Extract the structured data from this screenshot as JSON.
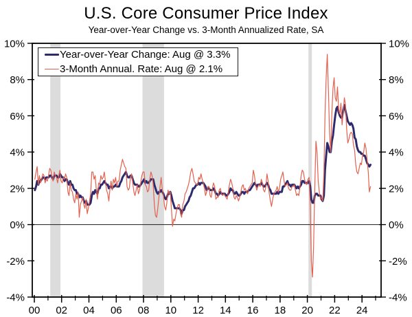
{
  "chart_data": {
    "type": "line",
    "title": "U.S. Core Consumer Price Index",
    "subtitle": "Year-over-Year Change vs. 3-Month Annualized Rate, SA",
    "x_unit": "monthly",
    "x_start": "2000-01",
    "x_end": "2024-08",
    "xlim": [
      1999.85,
      2025.4
    ],
    "ylim": [
      -4,
      10
    ],
    "yticks": [
      -4,
      -2,
      0,
      2,
      4,
      6,
      8,
      10
    ],
    "ytick_suffix": "%",
    "xticks_major": [
      2000,
      2002,
      2004,
      2006,
      2008,
      2010,
      2012,
      2014,
      2016,
      2018,
      2020,
      2022,
      2024
    ],
    "xtick_labels": [
      "00",
      "02",
      "04",
      "06",
      "08",
      "10",
      "12",
      "14",
      "16",
      "18",
      "20",
      "22",
      "24"
    ],
    "xticks_minor": [
      2001,
      2003,
      2005,
      2007,
      2009,
      2011,
      2013,
      2015,
      2017,
      2019,
      2021,
      2023,
      2025
    ],
    "grid": "none",
    "zero_line": 0,
    "legend_position": "top-left",
    "band_color": "#dcdcdc",
    "frame_color": "#000000",
    "recession_bands": [
      [
        2001.17,
        2001.92
      ],
      [
        2007.92,
        2009.5
      ],
      [
        2020.08,
        2020.33
      ]
    ],
    "series": [
      {
        "id": "yoy",
        "name": "Year-over-Year Change: Aug @ 3.3%",
        "latest_label": "Aug @ 3.3%",
        "color": "#2d2a6e",
        "width": 3,
        "values": [
          1.9,
          2.1,
          2.4,
          2.2,
          2.4,
          2.4,
          2.5,
          2.6,
          2.6,
          2.5,
          2.6,
          2.6,
          2.6,
          2.7,
          2.7,
          2.6,
          2.5,
          2.7,
          2.7,
          2.7,
          2.6,
          2.6,
          2.8,
          2.7,
          2.6,
          2.6,
          2.4,
          2.5,
          2.5,
          2.3,
          2.2,
          2.4,
          2.2,
          2.2,
          2.0,
          1.9,
          1.9,
          1.7,
          1.7,
          1.5,
          1.6,
          1.5,
          1.5,
          1.3,
          1.2,
          1.3,
          1.1,
          1.1,
          1.1,
          1.2,
          1.6,
          1.8,
          1.7,
          1.9,
          1.8,
          1.7,
          2.0,
          2.0,
          2.2,
          2.2,
          2.3,
          2.4,
          2.3,
          2.2,
          2.2,
          2.0,
          2.1,
          2.1,
          2.0,
          2.1,
          2.1,
          2.2,
          2.1,
          2.1,
          2.1,
          2.3,
          2.4,
          2.6,
          2.7,
          2.8,
          2.9,
          2.7,
          2.6,
          2.6,
          2.7,
          2.7,
          2.5,
          2.3,
          2.2,
          2.2,
          2.2,
          2.1,
          2.1,
          2.2,
          2.3,
          2.4,
          2.5,
          2.3,
          2.4,
          2.3,
          2.3,
          2.4,
          2.5,
          2.5,
          2.5,
          2.2,
          2.0,
          1.8,
          1.7,
          1.8,
          1.8,
          1.9,
          1.8,
          1.7,
          1.5,
          1.4,
          1.5,
          1.7,
          1.7,
          1.8,
          1.6,
          1.3,
          1.1,
          0.9,
          0.9,
          0.9,
          0.9,
          0.9,
          0.8,
          0.6,
          0.8,
          0.8,
          1.0,
          1.1,
          1.2,
          1.3,
          1.5,
          1.6,
          1.8,
          2.0,
          2.0,
          2.1,
          2.2,
          2.2,
          2.3,
          2.2,
          2.3,
          2.3,
          2.3,
          2.2,
          2.1,
          1.9,
          2.0,
          2.0,
          1.9,
          1.9,
          1.9,
          2.0,
          1.9,
          1.7,
          1.7,
          1.6,
          1.7,
          1.8,
          1.7,
          1.7,
          1.7,
          1.7,
          1.6,
          1.6,
          1.7,
          1.8,
          2.0,
          1.9,
          1.9,
          1.7,
          1.7,
          1.8,
          1.7,
          1.6,
          1.6,
          1.7,
          1.8,
          1.8,
          1.7,
          1.8,
          1.8,
          1.8,
          1.9,
          1.9,
          2.0,
          2.1,
          2.2,
          2.3,
          2.2,
          2.1,
          2.2,
          2.2,
          2.2,
          2.3,
          2.2,
          2.1,
          2.1,
          2.2,
          2.3,
          2.2,
          2.0,
          1.9,
          1.7,
          1.7,
          1.7,
          1.7,
          1.7,
          1.8,
          1.7,
          1.8,
          1.8,
          1.8,
          2.1,
          2.1,
          2.2,
          2.3,
          2.4,
          2.2,
          2.2,
          2.1,
          2.2,
          2.2,
          2.2,
          2.1,
          2.0,
          2.1,
          2.0,
          2.1,
          2.2,
          2.4,
          2.4,
          2.3,
          2.3,
          2.3,
          2.3,
          2.4,
          2.1,
          1.4,
          1.2,
          1.2,
          1.6,
          1.7,
          1.7,
          1.6,
          1.6,
          1.6,
          1.4,
          1.3,
          1.6,
          3.0,
          3.8,
          4.5,
          4.3,
          4.0,
          4.0,
          4.6,
          4.9,
          5.5,
          6.0,
          6.4,
          6.5,
          6.2,
          6.0,
          5.9,
          5.9,
          6.3,
          6.6,
          6.3,
          6.0,
          5.7,
          5.6,
          5.5,
          5.6,
          5.5,
          5.3,
          4.8,
          4.7,
          4.3,
          4.1,
          4.0,
          4.0,
          3.9,
          3.9,
          3.8,
          3.8,
          3.6,
          3.4,
          3.3,
          3.2,
          3.3
        ]
      },
      {
        "id": "annualized-3m",
        "name": "3-Month Annual. Rate: Aug @ 2.1%",
        "latest_label": "Aug @ 2.1%",
        "color": "#e4604d",
        "width": 1.2,
        "values": [
          2.5,
          2.9,
          3.2,
          2.2,
          2.7,
          2.3,
          2.5,
          2.8,
          2.7,
          2.3,
          2.5,
          2.4,
          2.7,
          3.1,
          3.0,
          2.6,
          2.4,
          2.9,
          2.7,
          2.6,
          2.3,
          2.7,
          3.0,
          2.4,
          2.3,
          2.6,
          2.5,
          2.8,
          2.6,
          1.8,
          1.6,
          2.3,
          1.9,
          1.8,
          1.4,
          1.2,
          1.7,
          1.4,
          1.8,
          0.4,
          1.1,
          1.3,
          1.5,
          1.1,
          0.9,
          1.4,
          0.6,
          0.9,
          1.3,
          1.7,
          2.9,
          2.9,
          2.5,
          2.7,
          1.9,
          1.4,
          2.3,
          2.2,
          2.7,
          2.5,
          2.6,
          2.9,
          2.4,
          1.9,
          1.7,
          1.3,
          2.0,
          2.4,
          1.9,
          2.5,
          2.3,
          2.6,
          2.1,
          2.4,
          2.4,
          3.0,
          3.3,
          3.6,
          3.4,
          3.2,
          3.1,
          2.1,
          1.9,
          2.0,
          2.6,
          2.8,
          2.3,
          1.8,
          1.6,
          1.9,
          2.2,
          1.7,
          1.9,
          2.3,
          2.7,
          2.9,
          2.9,
          2.2,
          2.1,
          1.8,
          1.9,
          2.5,
          2.9,
          2.7,
          2.2,
          1.1,
          0.5,
          0.4,
          0.9,
          1.5,
          2.1,
          2.6,
          1.9,
          1.6,
          1.0,
          0.8,
          1.2,
          1.9,
          1.7,
          1.8,
          0.9,
          -0.1,
          0.3,
          0.2,
          0.6,
          0.9,
          1.1,
          1.1,
          0.6,
          0.4,
          1.1,
          1.3,
          1.7,
          1.8,
          2.0,
          2.2,
          2.5,
          2.9,
          3.1,
          2.8,
          2.4,
          2.3,
          2.2,
          2.2,
          2.6,
          2.5,
          2.8,
          2.5,
          2.3,
          2.0,
          1.6,
          1.8,
          2.1,
          2.1,
          1.6,
          1.5,
          2.0,
          2.3,
          2.1,
          1.4,
          1.5,
          1.5,
          1.9,
          2.0,
          1.7,
          1.6,
          1.7,
          1.6,
          1.5,
          1.4,
          1.8,
          2.2,
          2.5,
          2.3,
          2.0,
          1.5,
          1.4,
          1.6,
          1.5,
          1.3,
          1.5,
          1.8,
          2.1,
          2.2,
          1.9,
          2.0,
          1.8,
          1.7,
          2.0,
          2.1,
          2.2,
          2.3,
          3.0,
          2.7,
          2.2,
          1.9,
          2.1,
          2.2,
          2.1,
          2.5,
          2.3,
          1.9,
          1.8,
          2.1,
          2.8,
          2.4,
          1.7,
          1.3,
          1.0,
          1.4,
          1.7,
          1.8,
          1.9,
          2.1,
          1.8,
          2.0,
          2.5,
          2.7,
          2.9,
          2.4,
          2.1,
          2.2,
          2.3,
          2.0,
          1.9,
          1.9,
          2.1,
          2.1,
          2.2,
          1.9,
          1.6,
          1.7,
          1.6,
          2.1,
          2.7,
          3.0,
          2.9,
          2.5,
          2.3,
          2.2,
          2.5,
          2.6,
          1.1,
          -2.0,
          -2.9,
          -1.2,
          2.0,
          4.6,
          4.0,
          2.4,
          1.8,
          1.4,
          1.5,
          1.3,
          2.8,
          6.0,
          8.1,
          9.4,
          7.4,
          5.1,
          4.0,
          6.1,
          7.5,
          8.1,
          7.0,
          6.8,
          7.6,
          6.3,
          6.1,
          6.7,
          5.5,
          6.2,
          7.0,
          6.6,
          5.3,
          4.5,
          4.7,
          5.0,
          5.1,
          5.0,
          4.4,
          4.1,
          3.3,
          2.9,
          2.8,
          3.1,
          3.4,
          3.3,
          3.8,
          4.0,
          4.5,
          4.2,
          3.6,
          2.9,
          1.8,
          2.1
        ]
      }
    ]
  }
}
